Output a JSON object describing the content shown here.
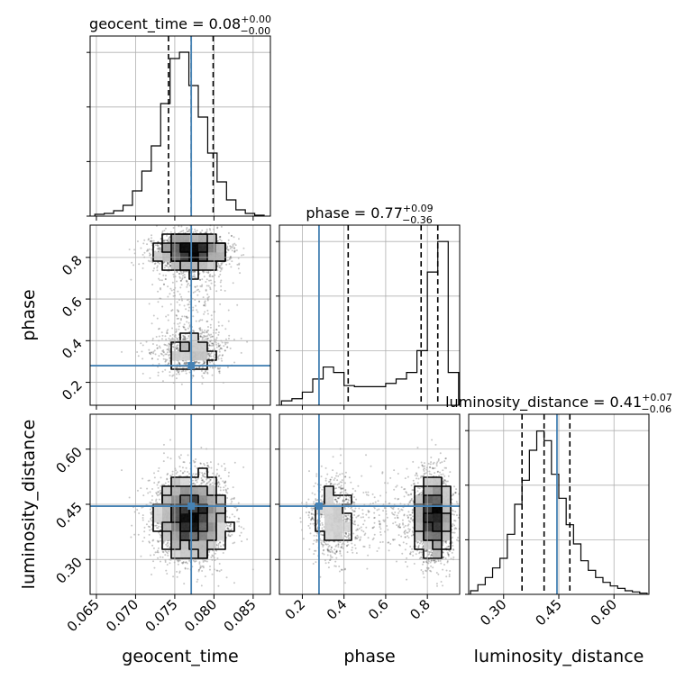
{
  "figure": {
    "params": [
      "geocent_time",
      "phase",
      "luminosity_distance"
    ],
    "truth_color": "#4682b4",
    "contour_color": "#000000",
    "grid": true
  },
  "chart_data": {
    "type": "corner",
    "truths": {
      "geocent_time": 0.0771,
      "phase": 0.28,
      "luminosity_distance": 0.445
    },
    "ranges": {
      "geocent_time": [
        0.0642,
        0.0872
      ],
      "phase": [
        0.09,
        0.955
      ],
      "luminosity_distance": [
        0.205,
        0.695
      ]
    },
    "ticks": {
      "geocent_time": {
        "values": [
          0.065,
          0.07,
          0.075,
          0.08,
          0.085
        ],
        "labels": [
          "0.065",
          "0.070",
          "0.075",
          "0.080",
          "0.085"
        ]
      },
      "phase": {
        "values": [
          0.2,
          0.4,
          0.6,
          0.8
        ],
        "labels": [
          "0.2",
          "0.4",
          "0.6",
          "0.8"
        ]
      },
      "luminosity_distance": {
        "values": [
          0.3,
          0.45,
          0.6
        ],
        "labels": [
          "0.30",
          "0.45",
          "0.60"
        ]
      }
    },
    "titles": [
      {
        "param": "geocent_time",
        "prefix": "geocent_time = 0.08",
        "sup": "+0.00",
        "sub": "−0.00"
      },
      {
        "param": "phase",
        "prefix": "phase = 0.77",
        "sup": "+0.09",
        "sub": "−0.36"
      },
      {
        "param": "luminosity_distance",
        "prefix": "luminosity_distance = 0.41",
        "sup": "+0.07",
        "sub": "−0.06"
      }
    ],
    "axis_labels": {
      "geocent_time": "geocent_time",
      "phase": "phase",
      "luminosity_distance": "luminosity_distance"
    },
    "histograms": {
      "geocent_time": {
        "edges": [
          0.0648,
          0.066,
          0.0672,
          0.0684,
          0.0696,
          0.0708,
          0.072,
          0.0732,
          0.0744,
          0.0756,
          0.0768,
          0.078,
          0.0792,
          0.0804,
          0.0816,
          0.0828,
          0.084,
          0.0852,
          0.0864
        ],
        "counts": [
          2,
          3,
          6,
          12,
          28,
          50,
          78,
          125,
          175,
          182,
          145,
          110,
          70,
          38,
          18,
          7,
          3,
          1
        ],
        "ymax": 200,
        "quantiles": [
          0.0742,
          0.0771,
          0.0799
        ]
      },
      "phase": {
        "edges": [
          0.1,
          0.15,
          0.2,
          0.25,
          0.3,
          0.35,
          0.4,
          0.45,
          0.5,
          0.55,
          0.6,
          0.65,
          0.7,
          0.75,
          0.8,
          0.85,
          0.9,
          0.95
        ],
        "counts": [
          4,
          6,
          12,
          24,
          35,
          30,
          18,
          17,
          17,
          17,
          20,
          24,
          30,
          50,
          122,
          150,
          30
        ],
        "ymax": 165,
        "quantiles": [
          0.42,
          0.77,
          0.85
        ]
      },
      "luminosity_distance": {
        "edges": [
          0.21,
          0.23,
          0.25,
          0.27,
          0.29,
          0.31,
          0.33,
          0.35,
          0.37,
          0.39,
          0.41,
          0.43,
          0.45,
          0.47,
          0.49,
          0.51,
          0.53,
          0.55,
          0.57,
          0.59,
          0.61,
          0.63,
          0.65,
          0.67,
          0.69
        ],
        "counts": [
          3,
          8,
          14,
          22,
          30,
          50,
          75,
          95,
          120,
          136,
          128,
          100,
          80,
          58,
          42,
          28,
          20,
          14,
          10,
          7,
          5,
          3,
          2,
          1
        ],
        "ymax": 150,
        "quantiles": [
          0.35,
          0.41,
          0.48
        ]
      }
    }
  }
}
